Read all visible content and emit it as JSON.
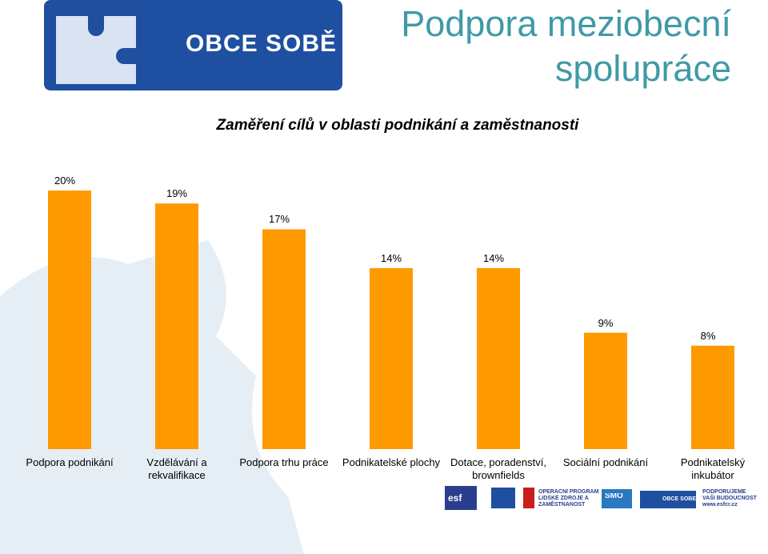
{
  "header": {
    "title": "Podpora meziobecní spolupráce",
    "logo": "OBCE SOBĚ"
  },
  "chart_data": {
    "type": "bar",
    "title": "Zaměření cílů v oblasti podnikání a zaměstnanosti",
    "categories": [
      "Podpora podnikání",
      "Vzdělávání a rekvalifikace",
      "Podpora trhu práce",
      "Podnikatelské plochy",
      "Dotace, poradenství, brownfields",
      "Sociální podnikání",
      "Podnikatelský inkubátor"
    ],
    "values": [
      20,
      19,
      17,
      14,
      14,
      9,
      8
    ],
    "value_labels": [
      "20%",
      "19%",
      "17%",
      "14%",
      "14%",
      "9%",
      "8%"
    ],
    "color": "#ff9900"
  },
  "footer": {
    "logos": [
      "esf",
      "OPERAČNÍ PROGRAM LIDSKÉ ZDROJE A ZAMĚSTNANOST",
      "SMO",
      "OBCE SOBĚ",
      "PODPORUJEME VAŠI BUDOUCNOST www.esfcr.cz"
    ]
  }
}
